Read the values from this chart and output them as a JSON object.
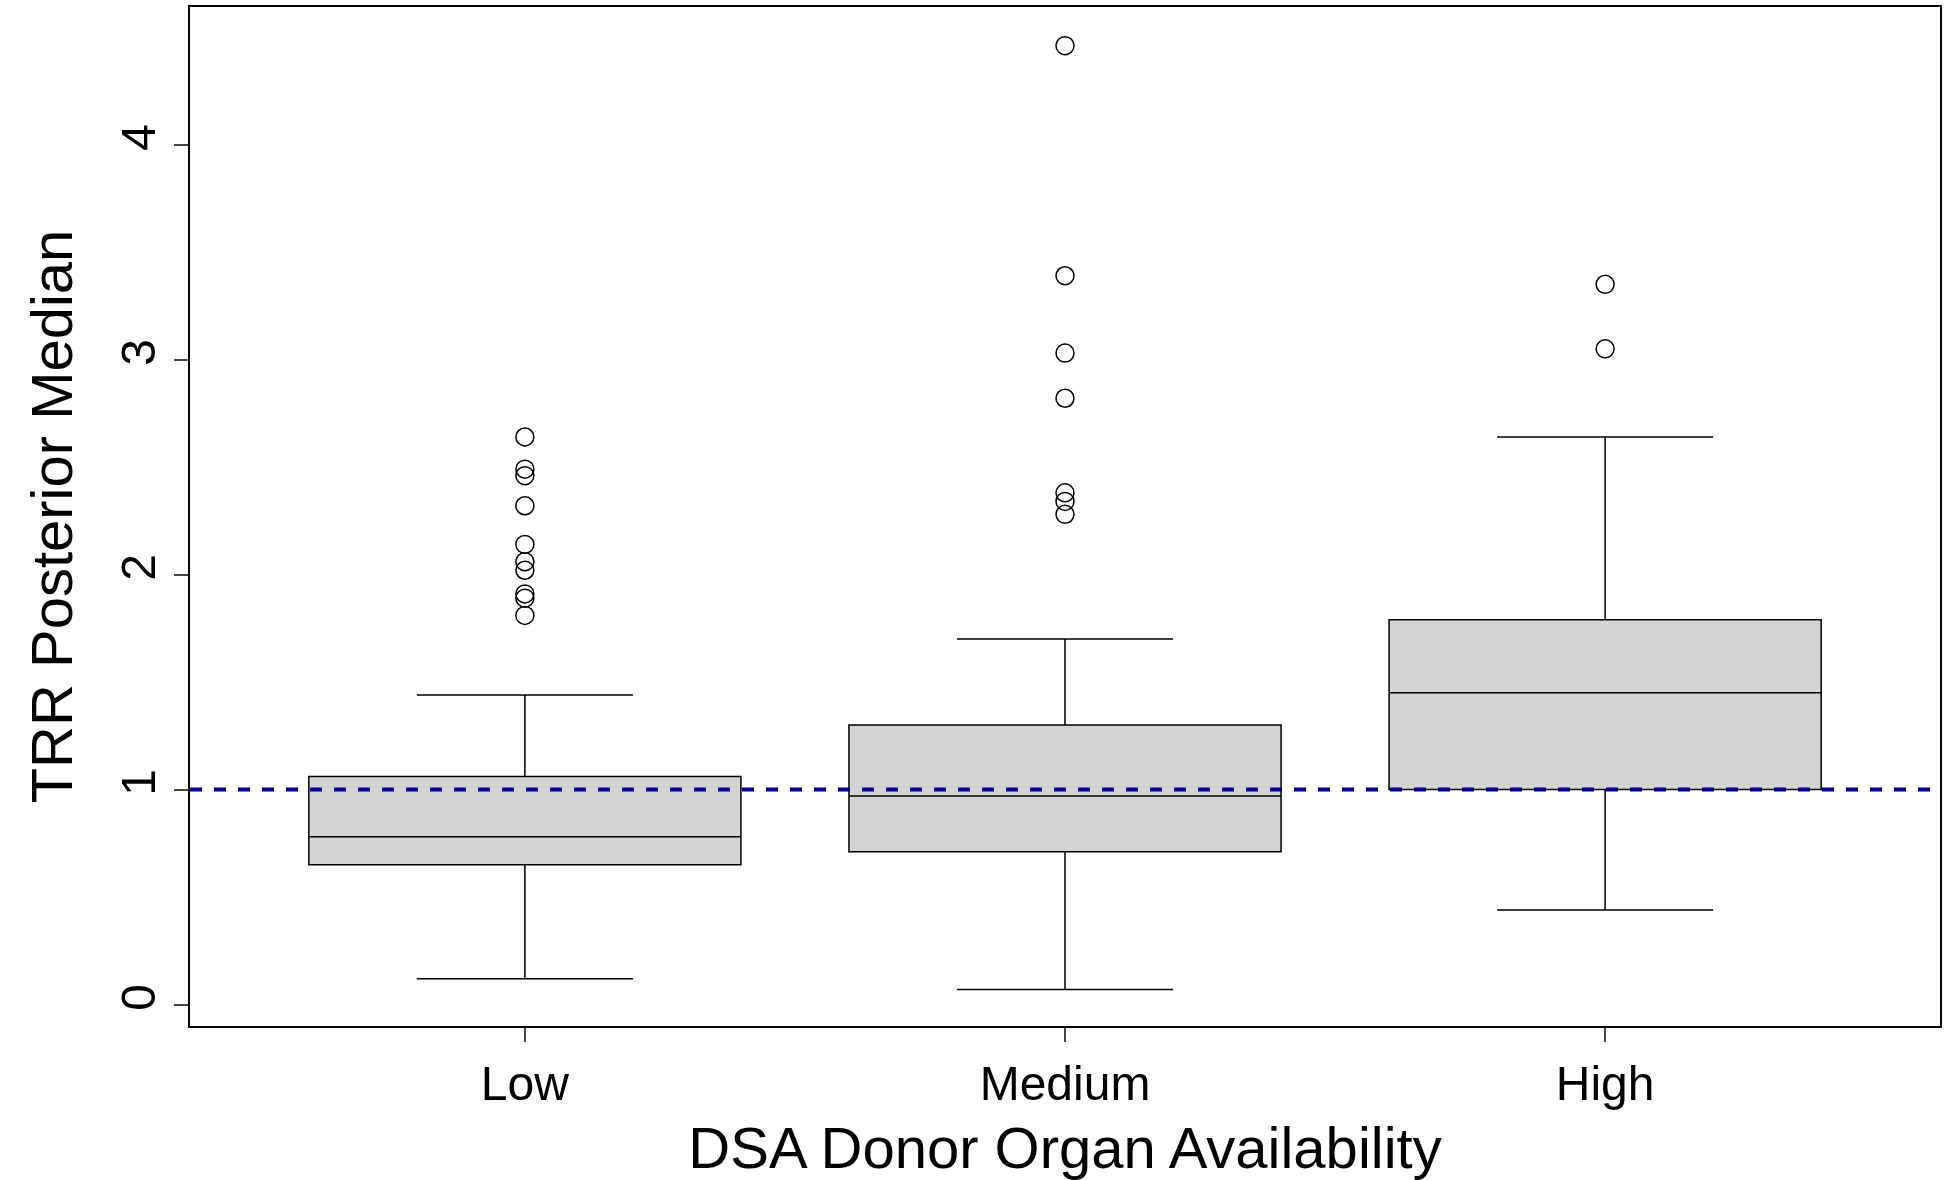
{
  "chart_data": {
    "type": "box",
    "xlabel": "DSA Donor Organ Availability",
    "ylabel": "TRR Posterior Median",
    "categories": [
      "Low",
      "Medium",
      "High"
    ],
    "boxes": [
      {
        "low": 0.12,
        "q1": 0.65,
        "median": 0.78,
        "q3": 1.06,
        "high": 1.44,
        "outliers": [
          2.64,
          2.49,
          2.46,
          2.32,
          2.14,
          2.06,
          2.02,
          1.91,
          1.89,
          1.81
        ]
      },
      {
        "low": 0.07,
        "q1": 0.71,
        "median": 0.97,
        "q3": 1.3,
        "high": 1.7,
        "outliers": [
          4.46,
          3.39,
          3.03,
          2.82,
          2.38,
          2.34,
          2.28
        ]
      },
      {
        "low": 0.44,
        "q1": 1.0,
        "median": 1.45,
        "q3": 1.79,
        "high": 2.64,
        "outliers": [
          3.35,
          3.05
        ]
      }
    ],
    "color": "#d3d3d3",
    "ylim": [
      -0.1,
      4.64
    ],
    "yticks": [
      0,
      1,
      2,
      3,
      4
    ],
    "ref_lines": [
      {
        "axis": "y",
        "value": 1,
        "color": "#00008b",
        "line_style": "dashed"
      }
    ]
  }
}
